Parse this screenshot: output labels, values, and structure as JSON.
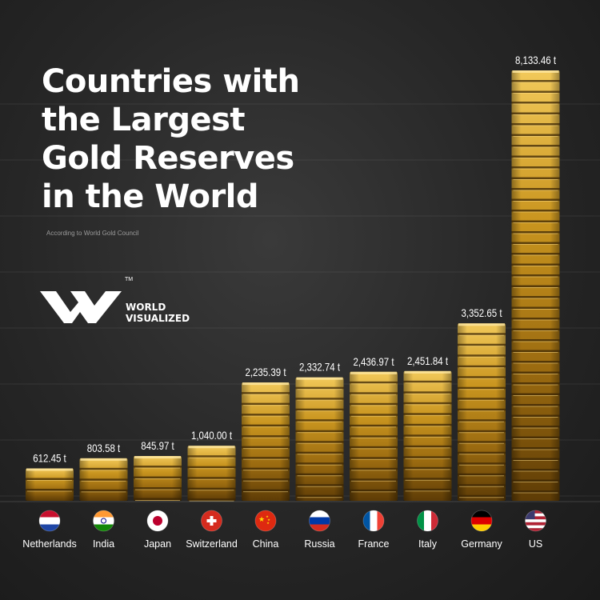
{
  "header": {
    "title": "Countries with the Largest Gold Reserves in the World",
    "subtitle": "According to World Gold Council"
  },
  "brand": {
    "line1": "WORLD",
    "line2": "VISUALIZED",
    "tm": "TM"
  },
  "colors": {
    "background": "#262626",
    "gold": "#b8860b",
    "gold_light": "#e0b040",
    "text": "#ffffff"
  },
  "chart_data": {
    "type": "bar",
    "title": "Countries with the Largest Gold Reserves in the World",
    "subtitle": "According to World Gold Council",
    "categories": [
      "Netherlands",
      "India",
      "Japan",
      "Switzerland",
      "China",
      "Russia",
      "France",
      "Italy",
      "Germany",
      "US"
    ],
    "values": [
      612.45,
      803.58,
      845.97,
      1040.0,
      2235.39,
      2332.74,
      2436.97,
      2451.84,
      3352.65,
      8133.46
    ],
    "value_labels": [
      "612.45 t",
      "803.58 t",
      "845.97 t",
      "1,040.00 t",
      "2,235.39 t",
      "2,332.74 t",
      "2,436.97 t",
      "2,451.84 t",
      "3,352.65 t",
      "8,133.46 t"
    ],
    "unit": "t",
    "flag_icons": [
      "netherlands-flag-icon",
      "india-flag-icon",
      "japan-flag-icon",
      "switzerland-flag-icon",
      "china-flag-icon",
      "russia-flag-icon",
      "france-flag-icon",
      "italy-flag-icon",
      "germany-flag-icon",
      "us-flag-icon"
    ],
    "ylim": [
      0,
      8133.46
    ],
    "grid": true,
    "legend": "none"
  }
}
